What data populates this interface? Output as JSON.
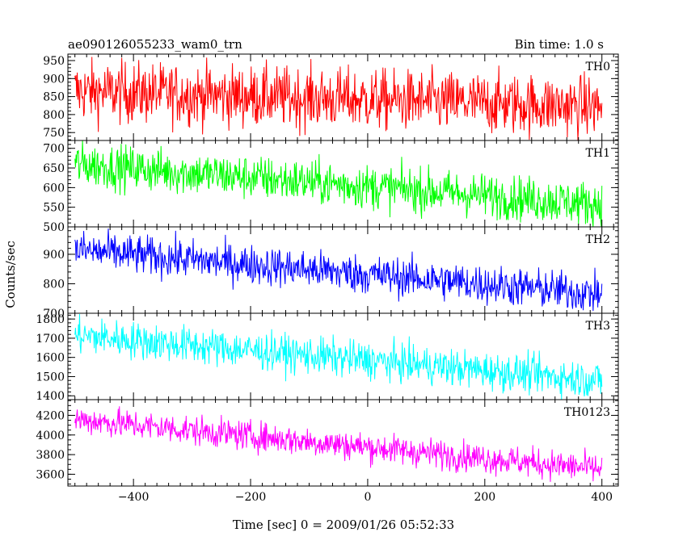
{
  "chart_data": {
    "type": "line",
    "title_left": "ae090126055233_wam0_trn",
    "title_right": "Bin time: 1.0 s",
    "xlabel": "Time [sec] 0 = 2009/01/26 05:52:33",
    "ylabel": "Counts/sec",
    "xlim": [
      -512,
      428
    ],
    "x_ticks": [
      -400,
      -200,
      0,
      200,
      400
    ],
    "x_tick_labels": [
      "−400",
      "−200",
      "0",
      "200",
      "400"
    ],
    "x_start": -500,
    "x_end": 400,
    "x_step": 1,
    "grid": false,
    "panels": [
      {
        "name": "TH0",
        "color": "#ff0000",
        "ylim": [
          728,
          968
        ],
        "y_ticks": [
          750,
          800,
          850,
          900,
          950
        ],
        "y_tick_labels": [
          "750",
          "800",
          "850",
          "900",
          "950"
        ],
        "minor_step": 10,
        "start": 865,
        "end": 822,
        "noise": 42
      },
      {
        "name": "TH1",
        "color": "#00ff00",
        "ylim": [
          500,
          720
        ],
        "y_ticks": [
          500,
          550,
          600,
          650,
          700
        ],
        "y_tick_labels": [
          "500",
          "550",
          "600",
          "650",
          "700"
        ],
        "minor_step": 10,
        "start": 660,
        "end": 557,
        "noise": 28
      },
      {
        "name": "TH2",
        "color": "#0000ff",
        "ylim": [
          700,
          993
        ],
        "y_ticks": [
          700,
          800,
          900
        ],
        "y_tick_labels": [
          "700",
          "800",
          "900"
        ],
        "minor_step": 20,
        "start": 915,
        "end": 765,
        "noise": 33
      },
      {
        "name": "TH3",
        "color": "#00ffff",
        "ylim": [
          1380,
          1830
        ],
        "y_ticks": [
          1400,
          1500,
          1600,
          1700,
          1800
        ],
        "y_tick_labels": [
          "1400",
          "1500",
          "1600",
          "1700",
          "1800"
        ],
        "minor_step": 20,
        "start": 1715,
        "end": 1480,
        "noise": 48
      },
      {
        "name": "TH0123",
        "color": "#ff00ff",
        "ylim": [
          3480,
          4360
        ],
        "y_ticks": [
          3600,
          3800,
          4000,
          4200
        ],
        "y_tick_labels": [
          "3600",
          "3800",
          "4000",
          "4200"
        ],
        "minor_step": 50,
        "start": 4160,
        "end": 3650,
        "noise": 75
      }
    ]
  }
}
